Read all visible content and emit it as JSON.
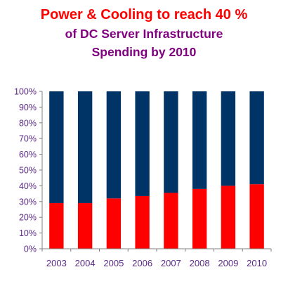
{
  "chart_data": {
    "type": "bar",
    "stacked": true,
    "title_lines": [
      "Power & Cooling  to reach 40 %",
      "of DC Server Infrastructure",
      "Spending by 2010"
    ],
    "categories": [
      "2003",
      "2004",
      "2005",
      "2006",
      "2007",
      "2008",
      "2009",
      "2010"
    ],
    "series": [
      {
        "values": [
          29,
          29,
          32,
          33.5,
          35.5,
          38,
          40,
          41
        ]
      },
      {
        "values": [
          71,
          71,
          68,
          66.5,
          64.5,
          62,
          60,
          59
        ]
      }
    ],
    "ylim": [
      0,
      100
    ],
    "yticks": [
      "0%",
      "10%",
      "20%",
      "30%",
      "40%",
      "50%",
      "60%",
      "70%",
      "80%",
      "90%",
      "100%"
    ],
    "grid": false,
    "legend": "none",
    "colors": {
      "title_line1": "#ff0000",
      "title_other": "#800080",
      "bottom_series": "#ff0000",
      "top_series": "#003366",
      "tick_labels": "#5b2a86",
      "axis": "#808080"
    }
  }
}
